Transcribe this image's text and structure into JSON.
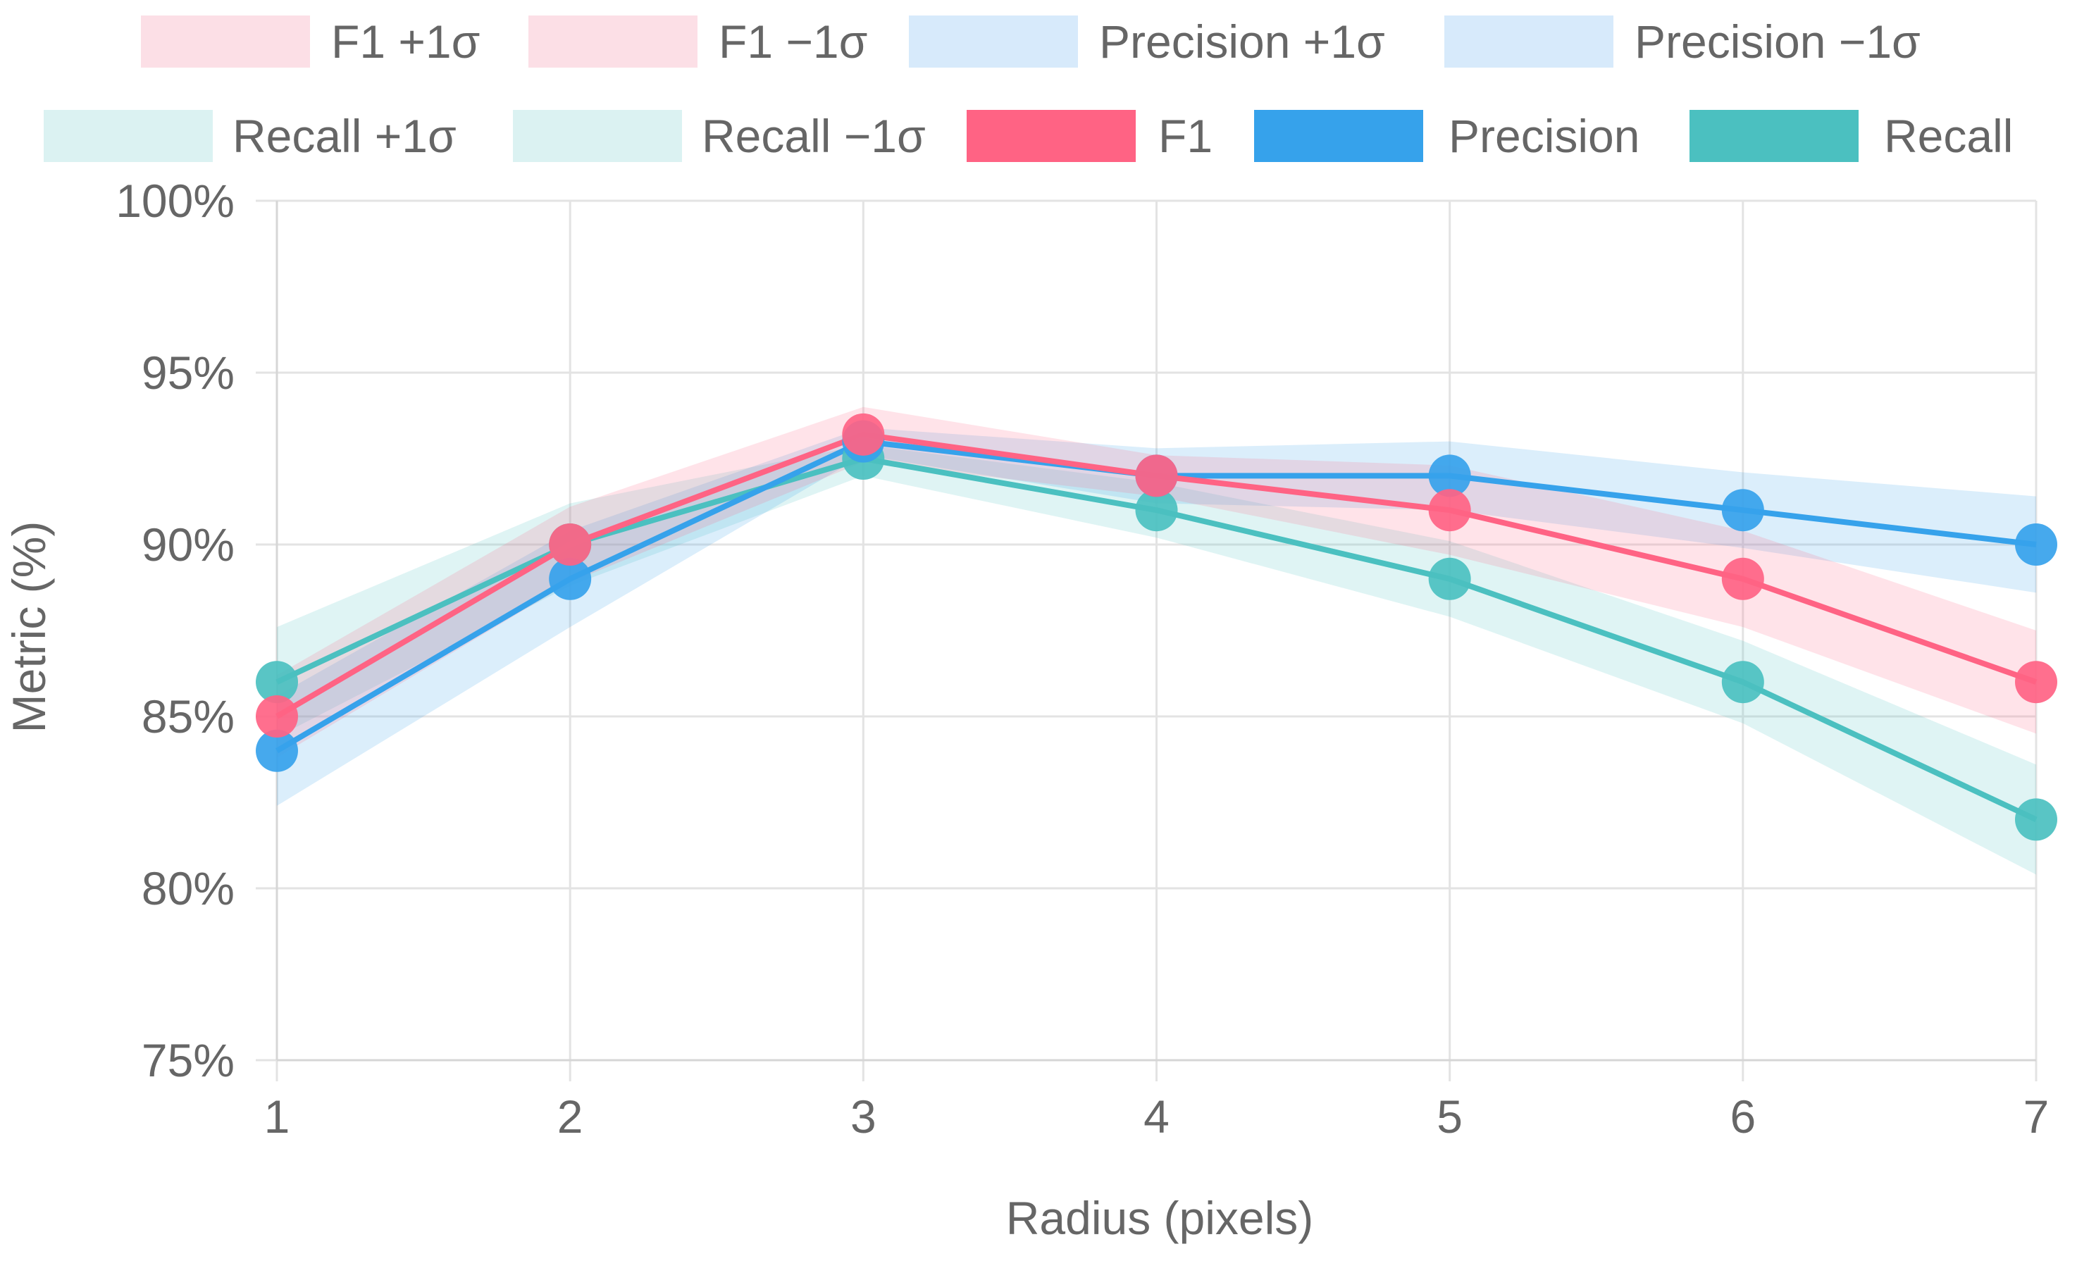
{
  "chart_data": {
    "type": "line",
    "title": "",
    "xlabel": "Radius (pixels)",
    "ylabel": "Metric (%)",
    "x": [
      1,
      2,
      3,
      4,
      5,
      6,
      7
    ],
    "x_tick_labels": [
      "1",
      "2",
      "3",
      "4",
      "5",
      "6",
      "7"
    ],
    "ylim": [
      75,
      100
    ],
    "y_ticks": [
      75,
      80,
      85,
      90,
      95,
      100
    ],
    "y_tick_labels": [
      "75%",
      "80%",
      "85%",
      "90%",
      "95%",
      "100%"
    ],
    "grid": true,
    "legend_position": "top",
    "legend": [
      {
        "label": "F1 +1σ",
        "kind": "band",
        "color": "#fcdfe6"
      },
      {
        "label": "F1 −1σ",
        "kind": "band",
        "color": "#fcdfe6"
      },
      {
        "label": "Precision +1σ",
        "kind": "band",
        "color": "#d7eafb"
      },
      {
        "label": "Precision −1σ",
        "kind": "band",
        "color": "#d7eafb"
      },
      {
        "label": "Recall +1σ",
        "kind": "band",
        "color": "#dbf2f2"
      },
      {
        "label": "Recall −1σ",
        "kind": "band",
        "color": "#dbf2f2"
      },
      {
        "label": "F1",
        "kind": "line",
        "color": "#ff6384"
      },
      {
        "label": "Precision",
        "kind": "line",
        "color": "#36a2eb"
      },
      {
        "label": "Recall",
        "kind": "line",
        "color": "#4bc0c0"
      }
    ],
    "bands": [
      {
        "name": "Recall ±1σ",
        "color": "#4bc0c0",
        "opacity": 0.18,
        "upper": [
          87.6,
          91.2,
          92.9,
          91.8,
          90.1,
          87.2,
          83.6
        ],
        "lower": [
          84.4,
          88.8,
          92.0,
          90.2,
          87.9,
          84.8,
          80.4
        ]
      },
      {
        "name": "Precision ±1σ",
        "color": "#36a2eb",
        "opacity": 0.18,
        "upper": [
          85.6,
          90.4,
          93.4,
          92.8,
          93.0,
          92.1,
          91.4
        ],
        "lower": [
          82.4,
          87.6,
          92.6,
          91.2,
          91.0,
          89.9,
          88.6
        ]
      },
      {
        "name": "F1 ±1σ",
        "color": "#ff6384",
        "opacity": 0.18,
        "upper": [
          86.2,
          91.1,
          94.0,
          92.6,
          92.3,
          90.4,
          87.5
        ],
        "lower": [
          83.8,
          88.9,
          92.4,
          91.4,
          89.7,
          87.6,
          84.5
        ]
      }
    ],
    "series": [
      {
        "name": "Recall",
        "color": "#4bc0c0",
        "values": [
          86.0,
          90.0,
          92.5,
          91.0,
          89.0,
          86.0,
          82.0
        ]
      },
      {
        "name": "Precision",
        "color": "#36a2eb",
        "values": [
          84.0,
          89.0,
          93.0,
          92.0,
          92.0,
          91.0,
          90.0
        ]
      },
      {
        "name": "F1",
        "color": "#ff6384",
        "values": [
          85.0,
          90.0,
          93.2,
          92.0,
          91.0,
          89.0,
          86.0
        ]
      }
    ]
  }
}
